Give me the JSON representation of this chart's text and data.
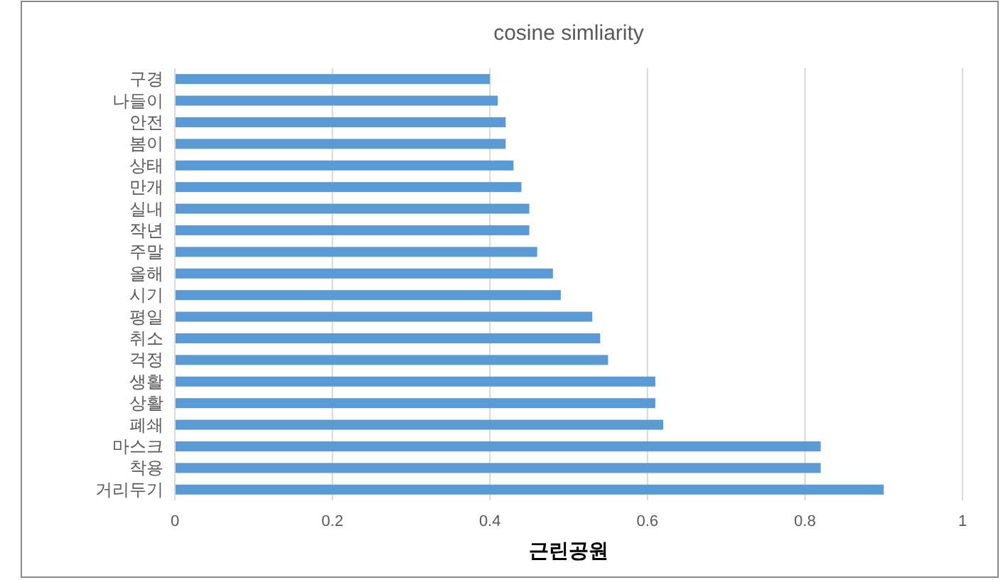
{
  "chart_data": {
    "type": "bar",
    "orientation": "horizontal",
    "title": "cosine simliarity",
    "xlabel": "근린공원",
    "categories": [
      "구경",
      "나들이",
      "안전",
      "봄이",
      "상태",
      "만개",
      "실내",
      "작년",
      "주말",
      "올해",
      "시기",
      "평일",
      "취소",
      "걱정",
      "생활",
      "상활",
      "폐쇄",
      "마스크",
      "착용",
      "거리두기"
    ],
    "values": [
      0.4,
      0.41,
      0.42,
      0.42,
      0.43,
      0.44,
      0.45,
      0.45,
      0.46,
      0.48,
      0.49,
      0.53,
      0.54,
      0.55,
      0.61,
      0.61,
      0.62,
      0.82,
      0.82,
      0.9
    ],
    "color": "#5b9bd5",
    "xlim": [
      0,
      1
    ],
    "xticks": [
      0,
      0.2,
      0.4,
      0.6,
      0.8,
      1
    ],
    "grid": "x"
  }
}
